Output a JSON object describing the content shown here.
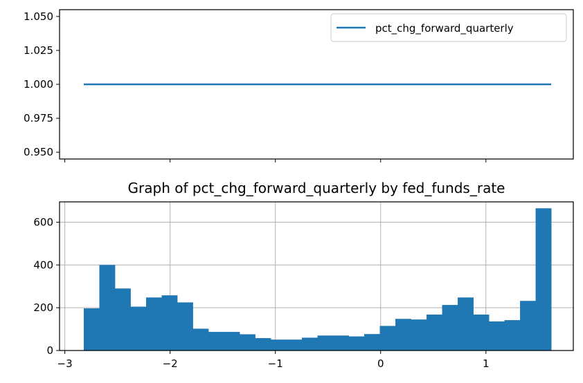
{
  "chart_data": [
    {
      "type": "line",
      "title": "",
      "xlabel": "",
      "ylabel": "",
      "xlim": [
        -3.05,
        1.83
      ],
      "ylim": [
        0.945,
        1.055
      ],
      "yticks": [
        "0.950",
        "0.975",
        "1.000",
        "1.025",
        "1.050"
      ],
      "ytick_values": [
        0.95,
        0.975,
        1.0,
        1.025,
        1.05
      ],
      "xticks": [
        -3,
        -2,
        -1,
        0,
        1
      ],
      "xtick_labels_visible": false,
      "series": [
        {
          "name": "pct_chg_forward_quarterly",
          "x": [
            -2.82,
            1.62
          ],
          "y": [
            1.0,
            1.0
          ],
          "color": "#1f77b4"
        }
      ],
      "legend": {
        "placement": "top-right"
      },
      "grid": false
    },
    {
      "type": "bar",
      "title": "Graph of pct_chg_forward_quarterly by fed_funds_rate",
      "xlabel": "",
      "ylabel": "",
      "xlim": [
        -3.05,
        1.83
      ],
      "ylim": [
        0,
        695
      ],
      "xticks": [
        "−3",
        "−2",
        "−1",
        "0",
        "1"
      ],
      "xtick_values": [
        -3,
        -2,
        -1,
        0,
        1
      ],
      "yticks": [
        "0",
        "200",
        "400",
        "600"
      ],
      "ytick_values": [
        0,
        200,
        400,
        600
      ],
      "bin_start": -2.82,
      "bin_end": 1.62,
      "values": [
        197,
        400,
        290,
        205,
        248,
        258,
        225,
        102,
        87,
        87,
        76,
        58,
        51,
        51,
        60,
        70,
        70,
        66,
        77,
        115,
        148,
        145,
        168,
        213,
        248,
        168,
        136,
        142,
        232,
        665
      ],
      "color": "#1f77b4",
      "grid": true
    }
  ]
}
